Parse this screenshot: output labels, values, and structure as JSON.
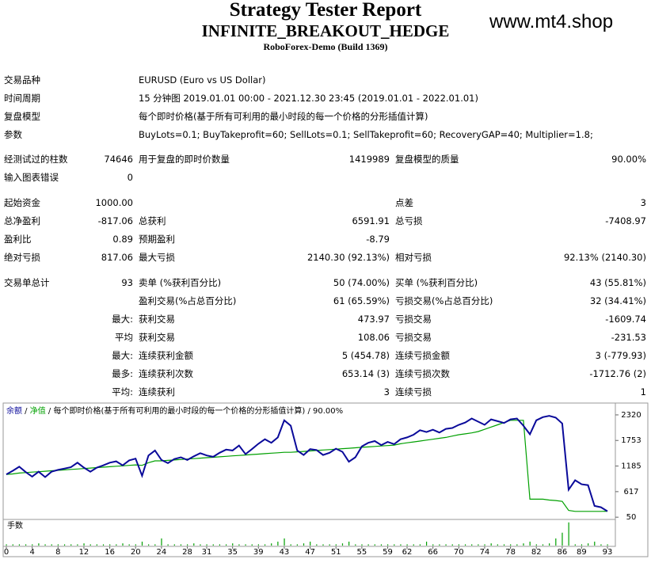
{
  "header": {
    "title": "Strategy Tester Report",
    "subtitle": "INFINITE_BREAKOUT_HEDGE",
    "server": "RoboForex-Demo (Build 1369)",
    "watermark": "www.mt4.shop"
  },
  "info": [
    {
      "label": "交易品种",
      "value": "EURUSD (Euro vs US Dollar)"
    },
    {
      "label": "时间周期",
      "value": "15 分钟图 2019.01.01 00:00 - 2021.12.30 23:45 (2019.01.01 - 2022.01.01)"
    },
    {
      "label": "复盘模型",
      "value": "每个即时价格(基于所有可利用的最小时段的每一个价格的分形插值计算)"
    },
    {
      "label": "参数",
      "value": "BuyLots=0.1; BuyTakeprofit=60; SellLots=0.1; SellTakeprofit=60; RecoveryGAP=40; Multiplier=1.8;"
    }
  ],
  "stats": [
    [
      [
        "经测试过的柱数",
        "74646",
        "用于复盘的即时价数量",
        "1419989",
        "复盘模型的质量",
        "90.00%"
      ],
      [
        "输入图表错误",
        "0",
        null,
        null,
        null,
        null
      ]
    ],
    [
      [
        "起始资金",
        "1000.00",
        null,
        null,
        "点差",
        "3"
      ],
      [
        "总净盈利",
        "-817.06",
        "总获利",
        "6591.91",
        "总亏损",
        "-7408.97"
      ],
      [
        "盈利比",
        "0.89",
        "预期盈利",
        "-8.79",
        null,
        null
      ],
      [
        "绝对亏损",
        "817.06",
        "最大亏损",
        "2140.30 (92.13%)",
        "相对亏损",
        "92.13% (2140.30)"
      ]
    ],
    [
      [
        "交易单总计",
        "93",
        "卖单 (%获利百分比)",
        "50 (74.00%)",
        "买单 (%获利百分比)",
        "43 (55.81%)"
      ],
      [
        null,
        null,
        "盈利交易(%占总百分比)",
        "61 (65.59%)",
        "亏损交易(%占总百分比)",
        "32 (34.41%)"
      ],
      [
        null,
        "最大:",
        "获利交易",
        "473.97",
        "亏损交易",
        "-1609.74"
      ],
      [
        null,
        "平均",
        "获利交易",
        "108.06",
        "亏损交易",
        "-231.53"
      ],
      [
        null,
        "最大:",
        "连续获利金额",
        "5 (454.78)",
        "连续亏损金额",
        "3 (-779.93)"
      ],
      [
        null,
        "最多:",
        "连续获利次数",
        "653.14 (3)",
        "连续亏损次数",
        "-1712.76 (2)"
      ],
      [
        null,
        "平均:",
        "连续获利",
        "3",
        "连续亏损",
        "1"
      ]
    ]
  ],
  "chart": {
    "type": "line",
    "separator": " / ",
    "model": "每个即时价格(基于所有可利用的最小时段的每一个价格的分形插值计算)",
    "quality": "90.00%",
    "ylim": [
      0,
      2530
    ],
    "yticks": [
      50,
      617,
      1185,
      1753,
      2320
    ],
    "xlim": [
      0,
      93
    ],
    "xticks": [
      0,
      4,
      8,
      12,
      16,
      20,
      24,
      28,
      31,
      35,
      39,
      43,
      47,
      51,
      55,
      59,
      62,
      66,
      70,
      74,
      78,
      82,
      86,
      89,
      93
    ],
    "series": [
      {
        "name": "余额",
        "color": "#0a0a9a",
        "values": [
          1000,
          1080,
          1170,
          1050,
          950,
          1060,
          940,
          1060,
          1100,
          1130,
          1160,
          1260,
          1150,
          1060,
          1150,
          1200,
          1260,
          1290,
          1200,
          1310,
          1350,
          970,
          1420,
          1530,
          1320,
          1250,
          1340,
          1380,
          1320,
          1400,
          1470,
          1420,
          1390,
          1480,
          1550,
          1530,
          1640,
          1450,
          1560,
          1680,
          1780,
          1700,
          1820,
          2200,
          2080,
          1530,
          1430,
          1560,
          1540,
          1430,
          1480,
          1570,
          1500,
          1280,
          1380,
          1620,
          1700,
          1740,
          1650,
          1720,
          1670,
          1780,
          1820,
          1880,
          1980,
          1940,
          1990,
          1930,
          2010,
          2030,
          2100,
          2150,
          2240,
          2170,
          2100,
          2220,
          2180,
          2140,
          2220,
          2240,
          2080,
          1890,
          2200,
          2270,
          2300,
          2260,
          2130,
          660,
          870,
          780,
          760,
          300,
          270,
          183
        ]
      },
      {
        "name": "净值",
        "color": "#00a000",
        "values": [
          1000,
          1010,
          1030,
          1040,
          1050,
          1060,
          1070,
          1080,
          1090,
          1100,
          1110,
          1120,
          1130,
          1140,
          1150,
          1160,
          1170,
          1180,
          1190,
          1200,
          1210,
          1200,
          1260,
          1300,
          1300,
          1310,
          1320,
          1330,
          1340,
          1350,
          1360,
          1370,
          1380,
          1390,
          1400,
          1410,
          1420,
          1430,
          1440,
          1450,
          1460,
          1470,
          1480,
          1490,
          1490,
          1500,
          1510,
          1520,
          1530,
          1540,
          1550,
          1560,
          1570,
          1580,
          1590,
          1600,
          1610,
          1620,
          1630,
          1640,
          1650,
          1680,
          1700,
          1720,
          1740,
          1760,
          1780,
          1800,
          1820,
          1850,
          1880,
          1900,
          1920,
          1950,
          2000,
          2050,
          2100,
          2150,
          2200,
          2200,
          2200,
          450,
          450,
          450,
          430,
          420,
          400,
          200,
          180,
          180,
          180,
          180,
          180,
          183
        ]
      }
    ],
    "lots": {
      "label": "手数",
      "color": "#00a000",
      "ylim": [
        0,
        2
      ],
      "values": [
        0.1,
        0.1,
        0.1,
        0.1,
        0.1,
        0.18,
        0.1,
        0.1,
        0.1,
        0.1,
        0.1,
        0.1,
        0.18,
        0.1,
        0.1,
        0.1,
        0.1,
        0.1,
        0.18,
        0.1,
        0.1,
        0.32,
        0.1,
        0.1,
        0.58,
        0.1,
        0.1,
        0.1,
        0.1,
        0.18,
        0.1,
        0.1,
        0.1,
        0.1,
        0.1,
        0.18,
        0.1,
        0.1,
        0.1,
        0.1,
        0.1,
        0.18,
        0.32,
        0.58,
        0.1,
        0.1,
        0.18,
        0.32,
        0.1,
        0.1,
        0.1,
        0.1,
        0.18,
        0.32,
        0.1,
        0.1,
        0.1,
        0.1,
        0.1,
        0.1,
        0.1,
        0.1,
        0.1,
        0.1,
        0.1,
        0.32,
        0.1,
        0.1,
        0.1,
        0.1,
        0.1,
        0.1,
        0.1,
        0.1,
        0.1,
        0.18,
        0.1,
        0.1,
        0.1,
        0.1,
        0.18,
        0.32,
        0.1,
        0.1,
        0.18,
        0.58,
        1.05,
        1.89,
        0.1,
        0.1,
        0.18,
        0.32,
        0.1,
        0.1
      ]
    }
  }
}
